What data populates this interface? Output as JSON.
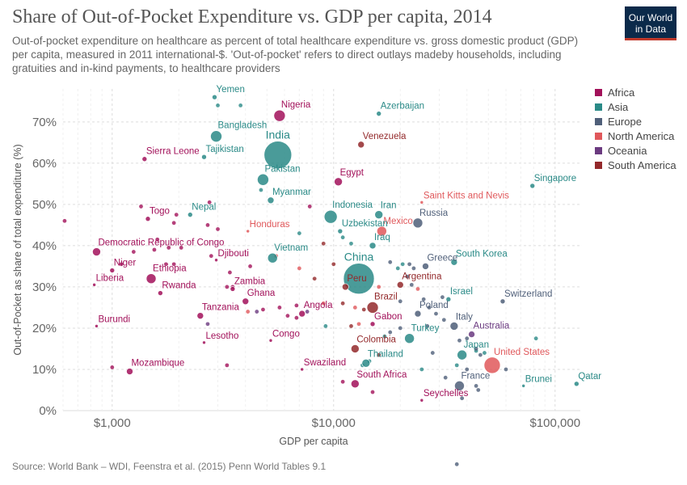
{
  "header": {
    "title": "Share of Out-of-Pocket Expenditure vs. GDP per capita, 2014",
    "subtitle": "Out-of-pocket expenditure on healthcare as percent of total healthcare expenditure vs. gross domestic product (GDP) per capita, measured in 2011 international-$. 'Out-of-pocket' refers to direct outlays madeby households, including gratuities and in-kind payments, to healthcare providers",
    "logo_line1": "Our World",
    "logo_line2": "in Data"
  },
  "footer": {
    "source": "Source: World Bank – WDI, Feenstra et al. (2015) Penn World Tables 9.1"
  },
  "colors": {
    "Africa": "#a2115a",
    "Asia": "#2a8a87",
    "Europe": "#4f5f79",
    "North America": "#e0585b",
    "Oceania": "#6b3a80",
    "South America": "#93292b"
  },
  "chart_data": {
    "type": "scatter",
    "title": "Share of Out-of-Pocket Expenditure vs. GDP per capita, 2014",
    "xlabel": "GDP per capita",
    "ylabel": "Out-of-Pocket as share of total expenditure (%)",
    "x_scale": "log",
    "xlim": [
      600,
      130000
    ],
    "ylim": [
      0,
      78
    ],
    "x_ticks": [
      1000,
      10000,
      100000
    ],
    "x_tick_labels": [
      "$1,000",
      "$10,000",
      "$100,000"
    ],
    "y_ticks": [
      0,
      10,
      20,
      30,
      40,
      50,
      60,
      70
    ],
    "y_tick_labels": [
      "0%",
      "10%",
      "20%",
      "30%",
      "40%",
      "50%",
      "60%",
      "70%"
    ],
    "grid": true,
    "legend_position": "right",
    "legend": [
      "Africa",
      "Asia",
      "Europe",
      "North America",
      "Oceania",
      "South America"
    ],
    "points": [
      {
        "label": "Yemen",
        "region": "Asia",
        "x": 2900,
        "y": 76,
        "size": 3
      },
      {
        "label": "Nigeria",
        "region": "Africa",
        "x": 5700,
        "y": 71.5,
        "size": 7
      },
      {
        "label": "Azerbaijan",
        "region": "Asia",
        "x": 16000,
        "y": 72,
        "size": 3
      },
      {
        "label": "Bangladesh",
        "region": "Asia",
        "x": 2950,
        "y": 66.5,
        "size": 7
      },
      {
        "label": "India",
        "region": "Asia",
        "x": 5600,
        "y": 62,
        "size": 17
      },
      {
        "label": "Venezuela",
        "region": "South America",
        "x": 13300,
        "y": 64.5,
        "size": 4
      },
      {
        "label": "Tajikistan",
        "region": "Asia",
        "x": 2600,
        "y": 61.5,
        "size": 3
      },
      {
        "label": "Sierra Leone",
        "region": "Africa",
        "x": 1400,
        "y": 61,
        "size": 3
      },
      {
        "label": "Pakistan",
        "region": "Asia",
        "x": 4800,
        "y": 56,
        "size": 7
      },
      {
        "label": "Egypt",
        "region": "Africa",
        "x": 10500,
        "y": 55.5,
        "size": 5
      },
      {
        "label": "Singapore",
        "region": "Asia",
        "x": 79000,
        "y": 54.5,
        "size": 3
      },
      {
        "label": "Myanmar",
        "region": "Asia",
        "x": 5200,
        "y": 51,
        "size": 4
      },
      {
        "label": "Saint Kitts and Nevis",
        "region": "North America",
        "x": 25000,
        "y": 50.5,
        "size": 2
      },
      {
        "label": "Nepal",
        "region": "Asia",
        "x": 2250,
        "y": 47.5,
        "size": 3
      },
      {
        "label": "Togo",
        "region": "Africa",
        "x": 1450,
        "y": 46.5,
        "size": 3
      },
      {
        "label": "Indonesia",
        "region": "Asia",
        "x": 9700,
        "y": 47,
        "size": 8
      },
      {
        "label": "Iran",
        "region": "Asia",
        "x": 16000,
        "y": 47.5,
        "size": 5
      },
      {
        "label": "Russia",
        "region": "Europe",
        "x": 24000,
        "y": 45.5,
        "size": 6
      },
      {
        "label": "Mexico",
        "region": "North America",
        "x": 16500,
        "y": 43.5,
        "size": 6
      },
      {
        "label": "Uzbekistan",
        "region": "Asia",
        "x": 10700,
        "y": 43.5,
        "size": 3
      },
      {
        "label": "Honduras",
        "region": "North America",
        "x": 4100,
        "y": 43.5,
        "size": 2
      },
      {
        "label": "Iraq",
        "region": "Asia",
        "x": 15000,
        "y": 40,
        "size": 4
      },
      {
        "label": "Democratic Republic of Congo",
        "region": "Africa",
        "x": 850,
        "y": 38.5,
        "size": 5
      },
      {
        "label": "Djibouti",
        "region": "Africa",
        "x": 2950,
        "y": 36.5,
        "size": 2
      },
      {
        "label": "Vietnam",
        "region": "Asia",
        "x": 5300,
        "y": 37,
        "size": 6
      },
      {
        "label": "South Korea",
        "region": "Asia",
        "x": 35000,
        "y": 36,
        "size": 4
      },
      {
        "label": "Greece",
        "region": "Europe",
        "x": 26000,
        "y": 35,
        "size": 4
      },
      {
        "label": "Niger",
        "region": "Africa",
        "x": 1000,
        "y": 34,
        "size": 3
      },
      {
        "label": "China",
        "region": "Asia",
        "x": 13000,
        "y": 32,
        "size": 19
      },
      {
        "label": "Ethiopia",
        "region": "Africa",
        "x": 1500,
        "y": 32,
        "size": 6
      },
      {
        "label": "Argentina",
        "region": "South America",
        "x": 20000,
        "y": 30.5,
        "size": 4
      },
      {
        "label": "Liberia",
        "region": "Africa",
        "x": 830,
        "y": 30.5,
        "size": 2
      },
      {
        "label": "Peru",
        "region": "South America",
        "x": 11300,
        "y": 30,
        "size": 4
      },
      {
        "label": "Zambia",
        "region": "Africa",
        "x": 3500,
        "y": 29.5,
        "size": 3
      },
      {
        "label": "Rwanda",
        "region": "Africa",
        "x": 1650,
        "y": 28.5,
        "size": 3
      },
      {
        "label": "Israel",
        "region": "Asia",
        "x": 33000,
        "y": 27,
        "size": 3
      },
      {
        "label": "Switzerland",
        "region": "Europe",
        "x": 58000,
        "y": 26.5,
        "size": 3
      },
      {
        "label": "Ghana",
        "region": "Africa",
        "x": 4000,
        "y": 26.5,
        "size": 4
      },
      {
        "label": "Brazil",
        "region": "South America",
        "x": 15000,
        "y": 25,
        "size": 7
      },
      {
        "label": "Tanzania",
        "region": "Africa",
        "x": 2500,
        "y": 23,
        "size": 4
      },
      {
        "label": "Angola",
        "region": "Africa",
        "x": 7200,
        "y": 23.5,
        "size": 4
      },
      {
        "label": "Poland",
        "region": "Europe",
        "x": 24000,
        "y": 23.5,
        "size": 4
      },
      {
        "label": "Gabon",
        "region": "Africa",
        "x": 15000,
        "y": 21,
        "size": 3
      },
      {
        "label": "Italy",
        "region": "Europe",
        "x": 35000,
        "y": 20.5,
        "size": 5
      },
      {
        "label": "Burundi",
        "region": "Africa",
        "x": 850,
        "y": 20.5,
        "size": 2
      },
      {
        "label": "Australia",
        "region": "Oceania",
        "x": 42000,
        "y": 18.5,
        "size": 4
      },
      {
        "label": "Turkey",
        "region": "Asia",
        "x": 22000,
        "y": 17.5,
        "size": 6
      },
      {
        "label": "Lesotho",
        "region": "Africa",
        "x": 2600,
        "y": 16.5,
        "size": 2
      },
      {
        "label": "Congo",
        "region": "Africa",
        "x": 5200,
        "y": 17,
        "size": 2
      },
      {
        "label": "Colombia",
        "region": "South America",
        "x": 12500,
        "y": 15,
        "size": 5
      },
      {
        "label": "Japan",
        "region": "Asia",
        "x": 38000,
        "y": 13.5,
        "size": 6
      },
      {
        "label": "United States",
        "region": "North America",
        "x": 52000,
        "y": 11,
        "size": 10
      },
      {
        "label": "Thailand",
        "region": "Asia",
        "x": 14000,
        "y": 11.5,
        "size": 5
      },
      {
        "label": "Mozambique",
        "region": "Africa",
        "x": 1200,
        "y": 9.5,
        "size": 4
      },
      {
        "label": "Swaziland",
        "region": "Africa",
        "x": 7200,
        "y": 10,
        "size": 2
      },
      {
        "label": "Qatar",
        "region": "Asia",
        "x": 125000,
        "y": 6.5,
        "size": 3
      },
      {
        "label": "South Africa",
        "region": "Africa",
        "x": 12500,
        "y": 6.5,
        "size": 5
      },
      {
        "label": "France",
        "region": "Europe",
        "x": 37000,
        "y": 6,
        "size": 6
      },
      {
        "label": "Brunei",
        "region": "Asia",
        "x": 72000,
        "y": 6,
        "size": 2
      },
      {
        "label": "Seychelles",
        "region": "Africa",
        "x": 25000,
        "y": 2.5,
        "size": 2
      }
    ],
    "unlabeled_points": [
      {
        "region": "Africa",
        "x": 610,
        "y": 46
      },
      {
        "region": "Africa",
        "x": 1350,
        "y": 49.5
      },
      {
        "region": "Africa",
        "x": 1950,
        "y": 47.5
      },
      {
        "region": "Africa",
        "x": 1900,
        "y": 45.5
      },
      {
        "region": "Africa",
        "x": 2700,
        "y": 45
      },
      {
        "region": "Africa",
        "x": 2750,
        "y": 50.5
      },
      {
        "region": "Africa",
        "x": 3000,
        "y": 44
      },
      {
        "region": "Africa",
        "x": 1600,
        "y": 41.5
      },
      {
        "region": "Africa",
        "x": 1800,
        "y": 39.5
      },
      {
        "region": "Africa",
        "x": 2050,
        "y": 39.5
      },
      {
        "region": "Africa",
        "x": 1550,
        "y": 39
      },
      {
        "region": "Africa",
        "x": 1250,
        "y": 38.5
      },
      {
        "region": "Africa",
        "x": 2800,
        "y": 37.5
      },
      {
        "region": "Africa",
        "x": 1750,
        "y": 35.5
      },
      {
        "region": "Africa",
        "x": 1900,
        "y": 35.5
      },
      {
        "region": "Africa",
        "x": 1100,
        "y": 35.5
      },
      {
        "region": "Africa",
        "x": 4200,
        "y": 35
      },
      {
        "region": "Africa",
        "x": 3400,
        "y": 33.5
      },
      {
        "region": "Africa",
        "x": 3300,
        "y": 30
      },
      {
        "region": "Africa",
        "x": 6800,
        "y": 25.5
      },
      {
        "region": "Africa",
        "x": 5700,
        "y": 25
      },
      {
        "region": "Africa",
        "x": 6200,
        "y": 23
      },
      {
        "region": "Africa",
        "x": 6800,
        "y": 22.5
      },
      {
        "region": "Africa",
        "x": 4800,
        "y": 24.5
      },
      {
        "region": "Africa",
        "x": 1000,
        "y": 10.5
      },
      {
        "region": "Africa",
        "x": 3300,
        "y": 11
      },
      {
        "region": "Africa",
        "x": 11000,
        "y": 7
      },
      {
        "region": "Africa",
        "x": 15000,
        "y": 4.5
      },
      {
        "region": "Africa",
        "x": 3500,
        "y": 30
      },
      {
        "region": "Africa",
        "x": 7800,
        "y": 49.5
      },
      {
        "region": "Asia",
        "x": 3800,
        "y": 74
      },
      {
        "region": "Asia",
        "x": 3000,
        "y": 74
      },
      {
        "region": "Asia",
        "x": 4700,
        "y": 53.5
      },
      {
        "region": "Asia",
        "x": 7000,
        "y": 43
      },
      {
        "region": "Asia",
        "x": 11000,
        "y": 42
      },
      {
        "region": "Asia",
        "x": 12000,
        "y": 40.5
      },
      {
        "region": "Asia",
        "x": 19500,
        "y": 34.5
      },
      {
        "region": "Asia",
        "x": 20500,
        "y": 35.5
      },
      {
        "region": "Asia",
        "x": 9200,
        "y": 20.5
      },
      {
        "region": "Asia",
        "x": 17000,
        "y": 18
      },
      {
        "region": "Asia",
        "x": 25000,
        "y": 10
      },
      {
        "region": "Asia",
        "x": 36000,
        "y": 11
      },
      {
        "region": "Asia",
        "x": 44000,
        "y": 14.5
      },
      {
        "region": "Asia",
        "x": 48000,
        "y": 14
      },
      {
        "region": "Asia",
        "x": 82000,
        "y": 17.5
      },
      {
        "region": "Asia",
        "x": 13500,
        "y": 11
      },
      {
        "region": "Asia",
        "x": 14500,
        "y": 12
      },
      {
        "region": "Europe",
        "x": 22000,
        "y": 35.5
      },
      {
        "region": "Europe",
        "x": 23000,
        "y": 34.5
      },
      {
        "region": "Europe",
        "x": 18000,
        "y": 36
      },
      {
        "region": "Europe",
        "x": 25500,
        "y": 27
      },
      {
        "region": "Europe",
        "x": 31000,
        "y": 27.5
      },
      {
        "region": "Europe",
        "x": 22500,
        "y": 30.5
      },
      {
        "region": "Europe",
        "x": 21500,
        "y": 32.5
      },
      {
        "region": "Europe",
        "x": 20000,
        "y": 26.5
      },
      {
        "region": "Europe",
        "x": 27000,
        "y": 25
      },
      {
        "region": "Europe",
        "x": 29000,
        "y": 23.5
      },
      {
        "region": "Europe",
        "x": 31500,
        "y": 22
      },
      {
        "region": "Europe",
        "x": 26500,
        "y": 20.5
      },
      {
        "region": "Europe",
        "x": 40000,
        "y": 17.5
      },
      {
        "region": "Europe",
        "x": 37000,
        "y": 17
      },
      {
        "region": "Europe",
        "x": 44000,
        "y": 15
      },
      {
        "region": "Europe",
        "x": 46000,
        "y": 13.5
      },
      {
        "region": "Europe",
        "x": 28000,
        "y": 14
      },
      {
        "region": "Europe",
        "x": 32000,
        "y": 8
      },
      {
        "region": "Europe",
        "x": 40000,
        "y": 10
      },
      {
        "region": "Europe",
        "x": 45000,
        "y": 5
      },
      {
        "region": "Europe",
        "x": 60000,
        "y": 10
      },
      {
        "region": "Europe",
        "x": 44000,
        "y": 6
      },
      {
        "region": "Europe",
        "x": 38000,
        "y": 3
      },
      {
        "region": "Europe",
        "x": 18000,
        "y": 19
      },
      {
        "region": "Europe",
        "x": 20000,
        "y": 20
      },
      {
        "region": "Europe",
        "x": 36000,
        "y": -13
      },
      {
        "region": "North America",
        "x": 5500,
        "y": 37.5
      },
      {
        "region": "North America",
        "x": 7000,
        "y": 34.5
      },
      {
        "region": "North America",
        "x": 4100,
        "y": 24
      },
      {
        "region": "North America",
        "x": 9000,
        "y": 26
      },
      {
        "region": "North America",
        "x": 12500,
        "y": 25
      },
      {
        "region": "North America",
        "x": 16000,
        "y": 30
      },
      {
        "region": "North America",
        "x": 24000,
        "y": 29.5
      },
      {
        "region": "North America",
        "x": 13000,
        "y": 21
      },
      {
        "region": "Oceania",
        "x": 2700,
        "y": 21
      },
      {
        "region": "Oceania",
        "x": 4500,
        "y": 24
      },
      {
        "region": "Oceania",
        "x": 7600,
        "y": 24
      },
      {
        "region": "South America",
        "x": 9000,
        "y": 40.5
      },
      {
        "region": "South America",
        "x": 10000,
        "y": 35.5
      },
      {
        "region": "South America",
        "x": 8200,
        "y": 32
      },
      {
        "region": "South America",
        "x": 13700,
        "y": 24.5
      },
      {
        "region": "South America",
        "x": 11000,
        "y": 26
      },
      {
        "region": "South America",
        "x": 12000,
        "y": 20.5
      },
      {
        "region": "South America",
        "x": 16000,
        "y": 13.5
      }
    ]
  }
}
